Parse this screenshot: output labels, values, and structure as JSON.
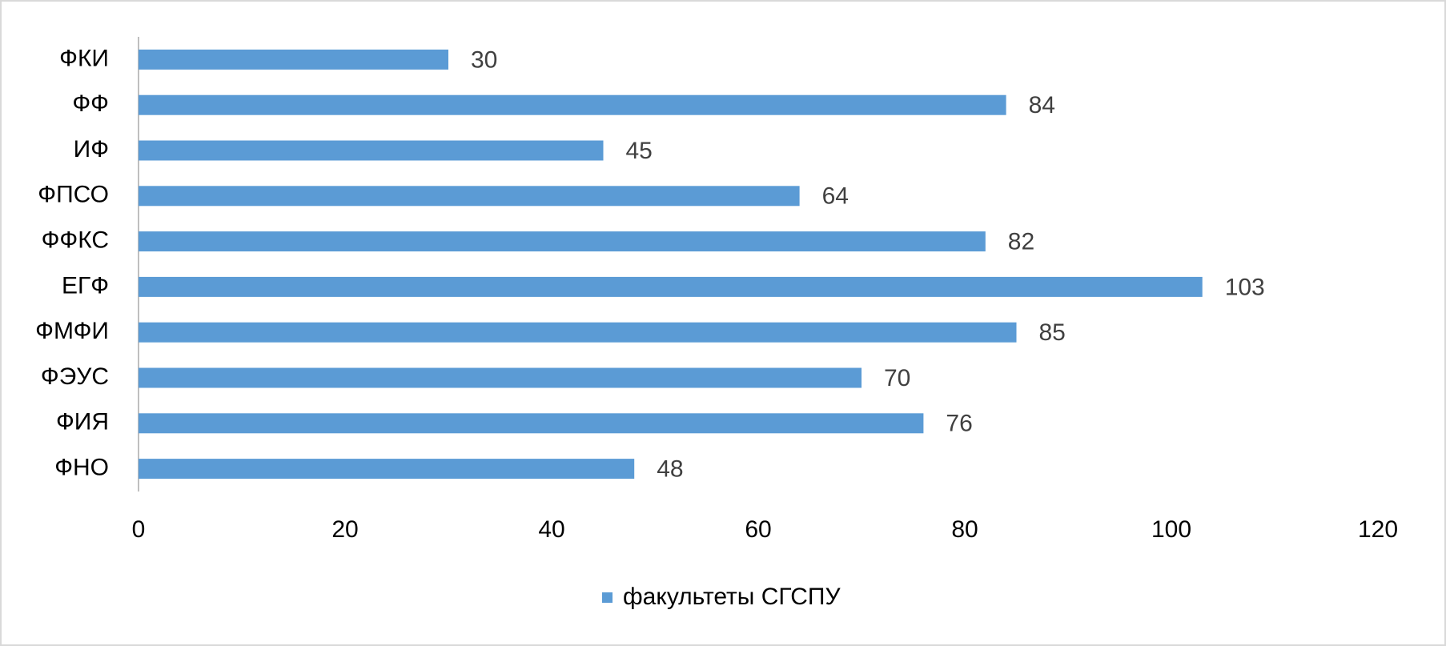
{
  "chart_data": {
    "type": "bar",
    "orientation": "horizontal",
    "categories": [
      "ФКИ",
      "ФФ",
      "ИФ",
      "ФПСО",
      "ФФКС",
      "ЕГФ",
      "ФМФИ",
      "ФЭУС",
      "ФИЯ",
      "ФНО"
    ],
    "series": [
      {
        "name": "факультеты СГСПУ",
        "color": "#5b9bd5",
        "values": [
          30,
          84,
          45,
          64,
          82,
          103,
          85,
          70,
          76,
          48
        ]
      }
    ],
    "xlim": [
      0,
      120
    ],
    "xticks": [
      0,
      20,
      40,
      60,
      80,
      100,
      120
    ],
    "grid": false,
    "legend": "bottom"
  }
}
